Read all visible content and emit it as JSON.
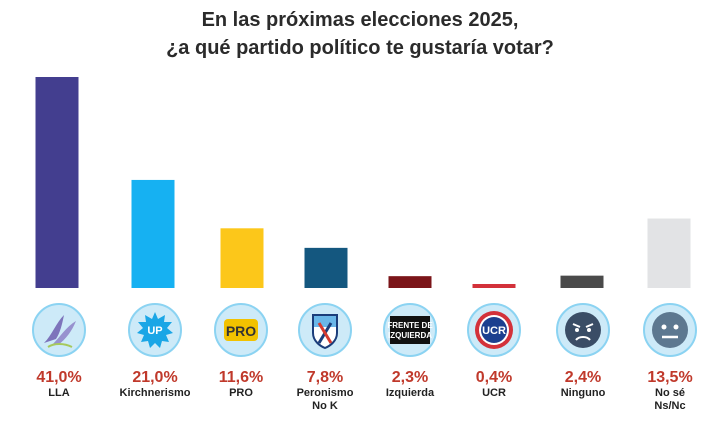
{
  "title_lines": [
    "En las próximas elecciones 2025,",
    "¿a qué partido político te gustaría votar?"
  ],
  "logos": {
    "up": "UP",
    "pro": "PRO",
    "fit_line1": "FRENTE DE",
    "fit_line2": "IZQUIERDA",
    "ucr": "UCR"
  },
  "chart_data": {
    "type": "bar",
    "title": "En las próximas elecciones 2025, ¿a qué partido político te gustaría votar?",
    "categories": [
      "LLA",
      "Kirchnerismo",
      "PRO",
      "Peronismo No K",
      "Izquierda",
      "UCR",
      "Ninguno",
      "No sé Ns/Nc"
    ],
    "category_label_lines": [
      [
        "LLA"
      ],
      [
        "Kirchnerismo"
      ],
      [
        "PRO"
      ],
      [
        "Peronismo",
        "No K"
      ],
      [
        "Izquierda"
      ],
      [
        "UCR"
      ],
      [
        "Ninguno"
      ],
      [
        "No sé",
        "Ns/Nc"
      ]
    ],
    "values": [
      41.0,
      21.0,
      11.6,
      7.8,
      2.3,
      0.4,
      2.4,
      13.5
    ],
    "value_labels": [
      "41,0%",
      "21,0%",
      "11,6%",
      "7,8%",
      "2,3%",
      "0,4%",
      "2,4%",
      "13,5%"
    ],
    "colors": [
      "#433e8f",
      "#16b1f2",
      "#fcc71a",
      "#14577f",
      "#7b1519",
      "#d3313a",
      "#4a4a4a",
      "#e2e3e5"
    ],
    "icons": [
      "lla-dove-logo-icon",
      "up-sun-logo-icon",
      "pro-logo-icon",
      "peronismo-shield-logo-icon",
      "frente-izquierda-logo-icon",
      "ucr-logo-icon",
      "angry-face-icon",
      "neutral-face-icon"
    ],
    "ylim": [
      0,
      41.0
    ],
    "grid": false,
    "legend": "none",
    "xlabel": "",
    "ylabel": ""
  }
}
